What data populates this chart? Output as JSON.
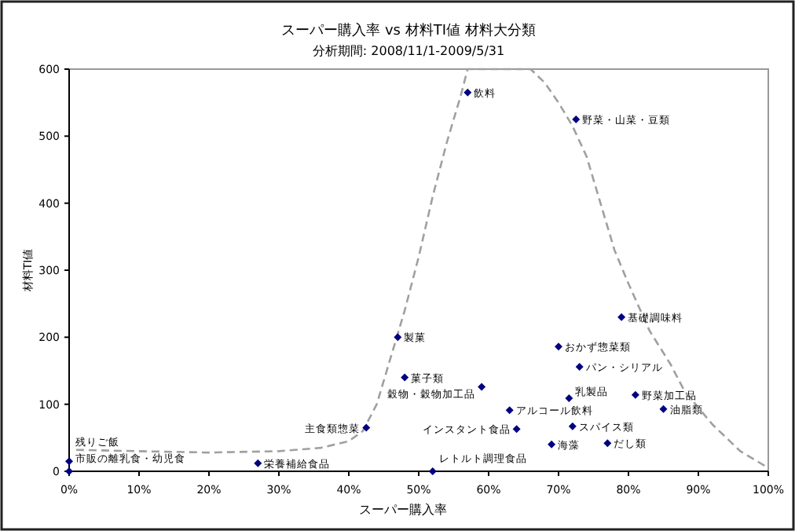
{
  "chart_data": {
    "type": "scatter",
    "title": "スーパー購入率 vs 材料TI値 材料大分類",
    "subtitle": "分析期間: 2008/11/1-2009/5/31",
    "xlabel": "スーパー購入率",
    "ylabel": "材料TI値",
    "xlim": [
      0,
      100
    ],
    "ylim": [
      0,
      600
    ],
    "xticks": [
      {
        "value": 0,
        "label": "0%"
      },
      {
        "value": 10,
        "label": "10%"
      },
      {
        "value": 20,
        "label": "20%"
      },
      {
        "value": 30,
        "label": "30%"
      },
      {
        "value": 40,
        "label": "40%"
      },
      {
        "value": 50,
        "label": "50%"
      },
      {
        "value": 60,
        "label": "60%"
      },
      {
        "value": 70,
        "label": "70%"
      },
      {
        "value": 80,
        "label": "80%"
      },
      {
        "value": 90,
        "label": "90%"
      },
      {
        "value": 100,
        "label": "100%"
      }
    ],
    "yticks": [
      0,
      100,
      200,
      300,
      400,
      500,
      600
    ],
    "grid": false,
    "marker": "diamond",
    "series": [
      {
        "color": "#000080",
        "x": [
          0,
          0,
          27,
          42.5,
          47,
          57,
          72.5,
          79,
          70,
          73,
          48,
          59,
          71.5,
          81,
          85,
          63,
          64,
          72,
          69,
          77,
          52
        ],
        "values": [
          15,
          0,
          12,
          65,
          200,
          565,
          525,
          230,
          186,
          156,
          140,
          126,
          109,
          114,
          93,
          91,
          63,
          67,
          40,
          42,
          0
        ]
      },
      {
        "type": "line",
        "color": "#a0a0a0",
        "line_style": "dashed",
        "marker": "none",
        "x": [
          1,
          10,
          20,
          30,
          36,
          40,
          42,
          44,
          46,
          48,
          50,
          52,
          54,
          56,
          57,
          66,
          68,
          70,
          72,
          74,
          76,
          78,
          80,
          83,
          86,
          88,
          92,
          96,
          100
        ],
        "values": [
          32,
          30,
          28,
          30,
          35,
          45,
          60,
          100,
          170,
          240,
          320,
          410,
          490,
          560,
          600,
          600,
          580,
          550,
          515,
          470,
          400,
          330,
          280,
          210,
          160,
          120,
          70,
          30,
          5
        ]
      }
    ],
    "annotations": [
      {
        "text": "残りご飯",
        "x": 0,
        "y": 15
      },
      {
        "text": "市販の離乳食・幼児食",
        "x": 0,
        "y": 0
      },
      {
        "text": "栄養補給食品",
        "x": 27,
        "y": 12
      },
      {
        "text": "主食類惣菜",
        "x": 42.5,
        "y": 65
      },
      {
        "text": "製菓",
        "x": 47,
        "y": 200
      },
      {
        "text": "飲料",
        "x": 57,
        "y": 565
      },
      {
        "text": "野菜・山菜・豆類",
        "x": 72.5,
        "y": 525
      },
      {
        "text": "基礎調味料",
        "x": 79,
        "y": 230
      },
      {
        "text": "おかず惣菜類",
        "x": 70,
        "y": 186
      },
      {
        "text": "パン・シリアル",
        "x": 73,
        "y": 156
      },
      {
        "text": "菓子類",
        "x": 48,
        "y": 140
      },
      {
        "text": "穀物・穀物加工品",
        "x": 59,
        "y": 126
      },
      {
        "text": "乳製品",
        "x": 71.5,
        "y": 109
      },
      {
        "text": "野菜加工品",
        "x": 81,
        "y": 114
      },
      {
        "text": "油脂類",
        "x": 85,
        "y": 93
      },
      {
        "text": "アルコール飲料",
        "x": 63,
        "y": 91
      },
      {
        "text": "インスタント食品",
        "x": 64,
        "y": 63
      },
      {
        "text": "スパイス類",
        "x": 72,
        "y": 67
      },
      {
        "text": "海藻",
        "x": 69,
        "y": 40
      },
      {
        "text": "だし類",
        "x": 77,
        "y": 42
      },
      {
        "text": "レトルト調理食品",
        "x": 52,
        "y": 0
      }
    ]
  }
}
